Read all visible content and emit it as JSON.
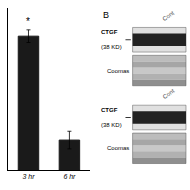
{
  "chart_data": {
    "type": "bar",
    "categories": [
      "3 hr",
      "6 hr"
    ],
    "values": [
      3.8,
      0.85
    ],
    "errors": [
      0.18,
      0.25
    ],
    "color": "#1a1a1a",
    "ylim": [
      0,
      4.6
    ],
    "yticks": [],
    "tick_labels": "x",
    "grid": false,
    "annotations": [
      {
        "text": "*",
        "category": "3 hr"
      },
      {
        "text": "B"
      },
      {
        "text": "Cont"
      },
      {
        "text": "CTGF"
      },
      {
        "text": "(38 KD)"
      },
      {
        "text": "Coomas"
      },
      {
        "text": "Cont"
      },
      {
        "text": "CTGF"
      },
      {
        "text": "(38 KD)"
      },
      {
        "text": "Coomas"
      }
    ]
  }
}
